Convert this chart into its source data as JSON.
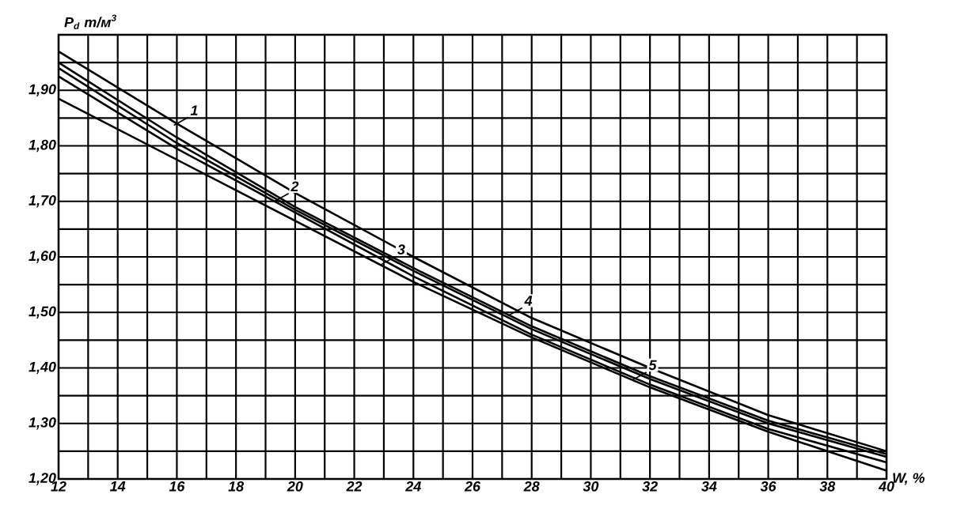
{
  "chart_data": {
    "type": "line",
    "xlabel": "W, %",
    "ylabel": "P$_{d}$ т/м$^{3}$",
    "x": [
      12,
      16,
      20,
      24,
      28,
      32,
      36,
      40
    ],
    "series": [
      {
        "color": "#000000",
        "values": [
          1.97,
          1.84,
          1.715,
          1.6,
          1.49,
          1.4,
          1.315,
          1.25
        ]
      },
      {
        "color": "#000000",
        "values": [
          1.95,
          1.815,
          1.69,
          1.58,
          1.475,
          1.385,
          1.305,
          1.245
        ]
      },
      {
        "color": "#000000",
        "values": [
          1.94,
          1.805,
          1.685,
          1.575,
          1.47,
          1.38,
          1.3,
          1.24
        ]
      },
      {
        "color": "#000000",
        "values": [
          1.925,
          1.795,
          1.68,
          1.565,
          1.46,
          1.37,
          1.29,
          1.23
        ]
      },
      {
        "color": "#000000",
        "values": [
          1.885,
          1.775,
          1.665,
          1.555,
          1.455,
          1.365,
          1.285,
          1.215
        ]
      }
    ],
    "xlim": [
      12,
      40
    ],
    "xticks": [
      12,
      {
        "value": 13,
        "label": null
      },
      14,
      {
        "value": 15,
        "label": null
      },
      16,
      {
        "value": 17,
        "label": null
      },
      18,
      {
        "value": 19,
        "label": null
      },
      20,
      {
        "value": 21,
        "label": null
      },
      22,
      {
        "value": 23,
        "label": null
      },
      24,
      {
        "value": 25,
        "label": null
      },
      26,
      {
        "value": 27,
        "label": null
      },
      28,
      {
        "value": 29,
        "label": null
      },
      30,
      {
        "value": 31,
        "label": null
      },
      32,
      {
        "value": 33,
        "label": null
      },
      34,
      {
        "value": 35,
        "label": null
      },
      36,
      {
        "value": 37,
        "label": null
      },
      38,
      {
        "value": 39,
        "label": null
      },
      40
    ],
    "ylim": [
      1.2,
      2.0
    ],
    "yticks": [
      {
        "value": 1.2,
        "label": "1,20"
      },
      {
        "value": 1.25,
        "label": null
      },
      {
        "value": 1.3,
        "label": "1,30"
      },
      {
        "value": 1.35,
        "label": null
      },
      {
        "value": 1.4,
        "label": "1,40"
      },
      {
        "value": 1.45,
        "label": null
      },
      {
        "value": 1.5,
        "label": "1,50"
      },
      {
        "value": 1.55,
        "label": null
      },
      {
        "value": 1.6,
        "label": "1,60"
      },
      {
        "value": 1.65,
        "label": null
      },
      {
        "value": 1.7,
        "label": "1,70"
      },
      {
        "value": 1.75,
        "label": null
      },
      {
        "value": 1.8,
        "label": "1,80"
      },
      {
        "value": 1.85,
        "label": null
      },
      {
        "value": 1.9,
        "label": "1,90"
      },
      {
        "value": 1.95,
        "label": null
      },
      {
        "value": 2.0,
        "label": null
      }
    ],
    "grid": true,
    "line_style": "solid",
    "annotations": [
      {
        "text": "1",
        "x": 15.9,
        "y": 1.837
      },
      {
        "text": "2",
        "x": 19.3,
        "y": 1.7
      },
      {
        "text": "3",
        "x": 22.9,
        "y": 1.586
      },
      {
        "text": "4",
        "x": 27.2,
        "y": 1.494
      },
      {
        "text": "5",
        "x": 31.4,
        "y": 1.378
      }
    ]
  }
}
